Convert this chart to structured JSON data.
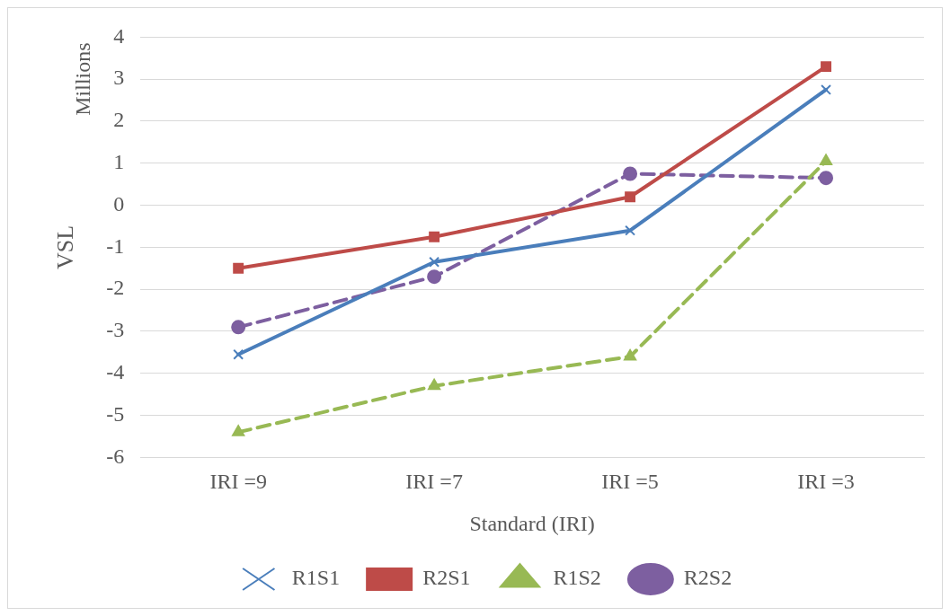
{
  "chart_data": {
    "type": "line",
    "xlabel": "Standard (IRI)",
    "ylabel": "VSL",
    "annotations": [
      "Millions"
    ],
    "categories": [
      "IRI =9",
      "IRI =7",
      "IRI =5",
      "IRI =3"
    ],
    "series": [
      {
        "name": "R1S1",
        "color": "#4a7ebb",
        "values": [
          -3.55,
          -1.35,
          -0.6,
          2.75
        ],
        "marker": "cross",
        "line_style": "solid"
      },
      {
        "name": "R2S1",
        "color": "#be4b48",
        "values": [
          -1.5,
          -0.75,
          0.2,
          3.3
        ],
        "marker": "square",
        "line_style": "solid"
      },
      {
        "name": "R1S2",
        "color": "#98b954",
        "values": [
          -5.4,
          -4.3,
          -3.6,
          1.05
        ],
        "marker": "triangle",
        "line_style": "dashed"
      },
      {
        "name": "R2S2",
        "color": "#7d5fa0",
        "values": [
          -2.9,
          -1.7,
          0.75,
          0.65
        ],
        "marker": "circle",
        "line_style": "dashed"
      }
    ],
    "ylim": [
      -6,
      4
    ],
    "yticks": [
      -6,
      -5,
      -4,
      -3,
      -2,
      -1,
      0,
      1,
      2,
      3,
      4
    ],
    "grid": "y",
    "legend": "bottom"
  }
}
